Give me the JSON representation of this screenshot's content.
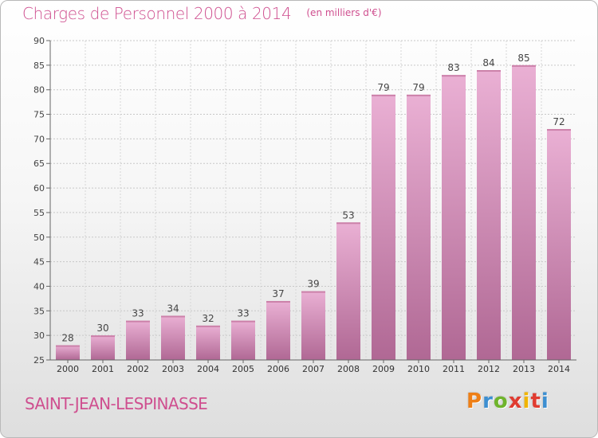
{
  "header": {
    "title": "Charges de Personnel 2000 à 2014",
    "unit_note": "(en milliers d'€)"
  },
  "footer": {
    "place_name": "SAINT-JEAN-LESPINASSE",
    "logo_text": "Proxiti"
  },
  "colors": {
    "accent": "#cf4f8f",
    "bar_light": "#eab0d4",
    "bar_dark": "#b06894",
    "logo_letters": [
      "#ee7f16",
      "#3d8fd1",
      "#6fb42c",
      "#e03c31",
      "#f0b400",
      "#e03c31",
      "#3d8fd1"
    ]
  },
  "chart_data": {
    "type": "bar",
    "title": "Charges de Personnel 2000 à 2014",
    "subtitle": "(en milliers d'€)",
    "categories": [
      "2000",
      "2001",
      "2002",
      "2003",
      "2004",
      "2005",
      "2006",
      "2007",
      "2008",
      "2009",
      "2010",
      "2011",
      "2012",
      "2013",
      "2014"
    ],
    "values": [
      28,
      30,
      33,
      34,
      32,
      33,
      37,
      39,
      53,
      79,
      79,
      83,
      84,
      85,
      72
    ],
    "ylim": [
      25,
      90
    ],
    "yticks": [
      25,
      30,
      35,
      40,
      45,
      50,
      55,
      60,
      65,
      70,
      75,
      80,
      85,
      90
    ],
    "grid": true,
    "data_labels": true,
    "xlabel": "",
    "ylabel": ""
  }
}
